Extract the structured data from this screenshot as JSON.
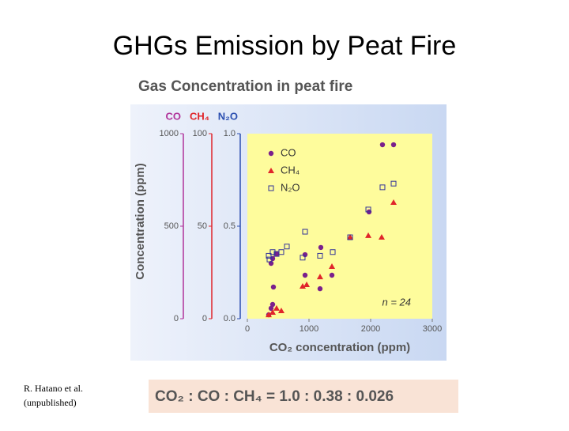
{
  "heading": "GHGs Emission by Peat Fire",
  "citation": [
    "R. Hatano et al.",
    "(unpublished)"
  ],
  "formula": "CO₂ : CO : CH₄ = 1.0 : 0.38 : 0.026",
  "chart_data": {
    "type": "scatter",
    "title": "Gas Concentration in peat fire",
    "xlabel": "CO₂ concentration (ppm)",
    "ylabel": "Concentration (ppm)",
    "annotation": "n = 24",
    "xlim": [
      0,
      3000
    ],
    "xticks": [
      0,
      1000,
      2000,
      3000
    ],
    "y_axes": [
      {
        "title": "CO",
        "color": "#b0339a",
        "lim": [
          0,
          1000
        ],
        "ticks": [
          0,
          500,
          1000
        ]
      },
      {
        "title": "CH₄",
        "color": "#e0252a",
        "lim": [
          0,
          100
        ],
        "ticks": [
          0,
          50,
          100
        ]
      },
      {
        "title": "N₂O",
        "color": "#2b4fb0",
        "lim": [
          0,
          1
        ],
        "ticks": [
          {
            "value": 0,
            "label": "0.0"
          },
          {
            "value": 0.5,
            "label": "0.5"
          },
          {
            "value": 1,
            "label": "1.0"
          }
        ]
      }
    ],
    "series": [
      {
        "name": "CO",
        "color": "#7a1f8c",
        "marker": "circle",
        "axis": 0,
        "x": [
          346,
          385,
          410,
          423,
          385,
          410,
          474,
          936,
          936,
          1179,
          1192,
          1372,
          1974,
          2192,
          2372
        ],
        "values": [
          21,
          56,
          77,
          171,
          299,
          325,
          350,
          235,
          346,
          162,
          385,
          235,
          577,
          940,
          940
        ]
      },
      {
        "name": "CH₄",
        "color": "#e0252a",
        "marker": "triangle",
        "axis": 1,
        "x": [
          346,
          410,
          474,
          551,
          897,
          962,
          1179,
          1372,
          1667,
          1962,
          2179,
          2372
        ],
        "values": [
          2.1,
          3.4,
          5.6,
          4.3,
          17.5,
          18.4,
          22.6,
          28.2,
          44.0,
          44.9,
          44.0,
          62.8
        ]
      },
      {
        "name": "N₂O",
        "color": "#333399",
        "marker": "square",
        "axis": 2,
        "x": [
          346,
          410,
          359,
          474,
          551,
          641,
          936,
          897,
          1179,
          1385,
          1667,
          1962,
          2192,
          2372
        ],
        "values": [
          0.34,
          0.36,
          0.32,
          0.35,
          0.36,
          0.39,
          0.47,
          0.33,
          0.34,
          0.36,
          0.44,
          0.59,
          0.71,
          0.73
        ]
      }
    ],
    "legend": "upper left"
  }
}
